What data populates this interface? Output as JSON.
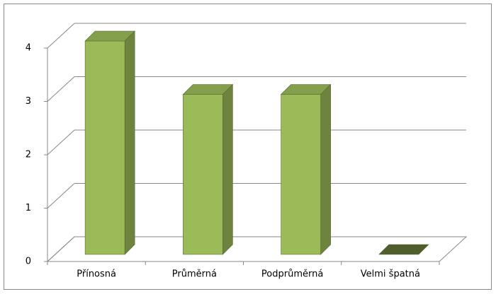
{
  "chart_data": {
    "type": "bar3d",
    "categories": [
      "Přínosná",
      "Průměrná",
      "Podprůměrná",
      "Velmi špatná"
    ],
    "values": [
      4,
      3,
      3,
      0
    ],
    "color": "#9bbb59",
    "ylim": [
      0,
      4
    ],
    "yticks": [
      0,
      1,
      2,
      3,
      4
    ],
    "grid": true
  }
}
